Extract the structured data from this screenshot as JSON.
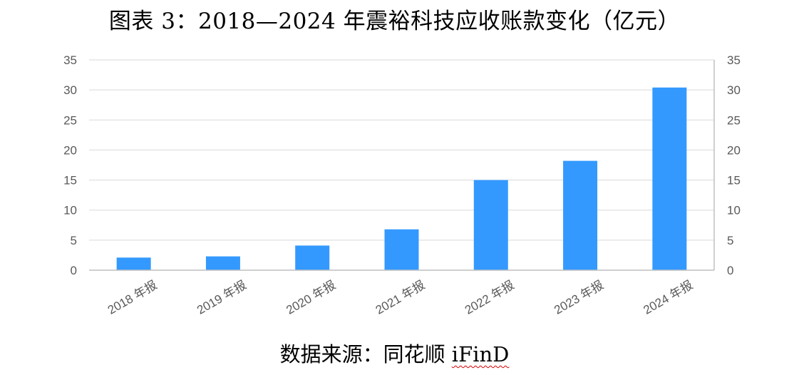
{
  "title": "图表 3：2018—2024 年震裕科技应收账款变化（亿元）",
  "source": {
    "prefix": "数据来源：同花顺 ",
    "brand": "iFinD"
  },
  "colors": {
    "bar": "#3399FF",
    "grid": "#D9D9D9",
    "axis": "#BFBFBF",
    "tick_text": "#595959"
  },
  "chart_data": {
    "type": "bar",
    "title": "图表 3：2018—2024 年震裕科技应收账款变化（亿元）",
    "xlabel": "",
    "ylabel": "",
    "categories": [
      "2018 年报",
      "2019 年报",
      "2020 年报",
      "2021 年报",
      "2022 年报",
      "2023 年报",
      "2024 年报"
    ],
    "values": [
      2.1,
      2.3,
      4.1,
      6.8,
      15.0,
      18.2,
      30.4
    ],
    "ylim": [
      0,
      35
    ],
    "yticks": [
      0,
      5,
      10,
      15,
      20,
      25,
      30,
      35
    ],
    "secondary_yticks": [
      0,
      5,
      10,
      15,
      20,
      25,
      30,
      35
    ],
    "grid": true,
    "legend": "none"
  }
}
